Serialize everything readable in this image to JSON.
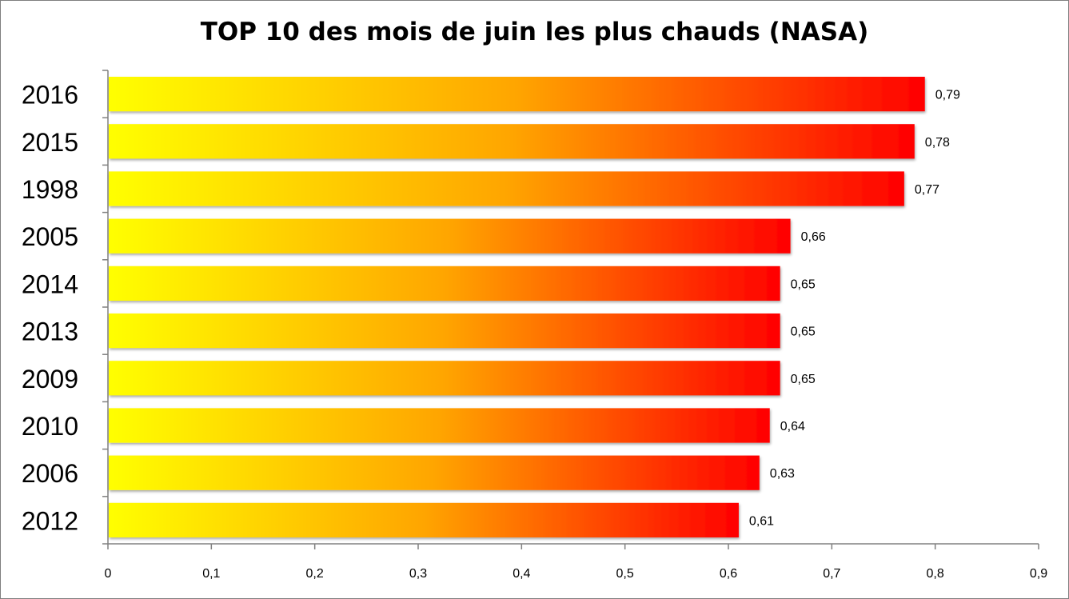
{
  "chart_data": {
    "type": "bar",
    "orientation": "horizontal",
    "title": "TOP 10 des mois de juin les plus chauds (NASA)",
    "xlabel": "",
    "ylabel": "",
    "categories": [
      "2016",
      "2015",
      "1998",
      "2005",
      "2014",
      "2013",
      "2009",
      "2010",
      "2006",
      "2012"
    ],
    "values": [
      0.79,
      0.78,
      0.77,
      0.66,
      0.65,
      0.65,
      0.65,
      0.64,
      0.63,
      0.61
    ],
    "value_labels": [
      "0,79",
      "0,78",
      "0,77",
      "0,66",
      "0,65",
      "0,65",
      "0,65",
      "0,64",
      "0,63",
      "0,61"
    ],
    "xlim": [
      0,
      0.9
    ],
    "ticks": [
      0,
      0.1,
      0.2,
      0.3,
      0.4,
      0.5,
      0.6,
      0.7,
      0.8,
      0.9
    ],
    "tick_labels": [
      "0",
      "0,1",
      "0,2",
      "0,3",
      "0,4",
      "0,5",
      "0,6",
      "0,7",
      "0,8",
      "0,9"
    ],
    "grid": false,
    "legend": "none",
    "colors": {
      "gradient_start": "#ffff00",
      "gradient_mid": "#ffa500",
      "gradient_end": "#ff0000",
      "axis": "#808080"
    }
  }
}
